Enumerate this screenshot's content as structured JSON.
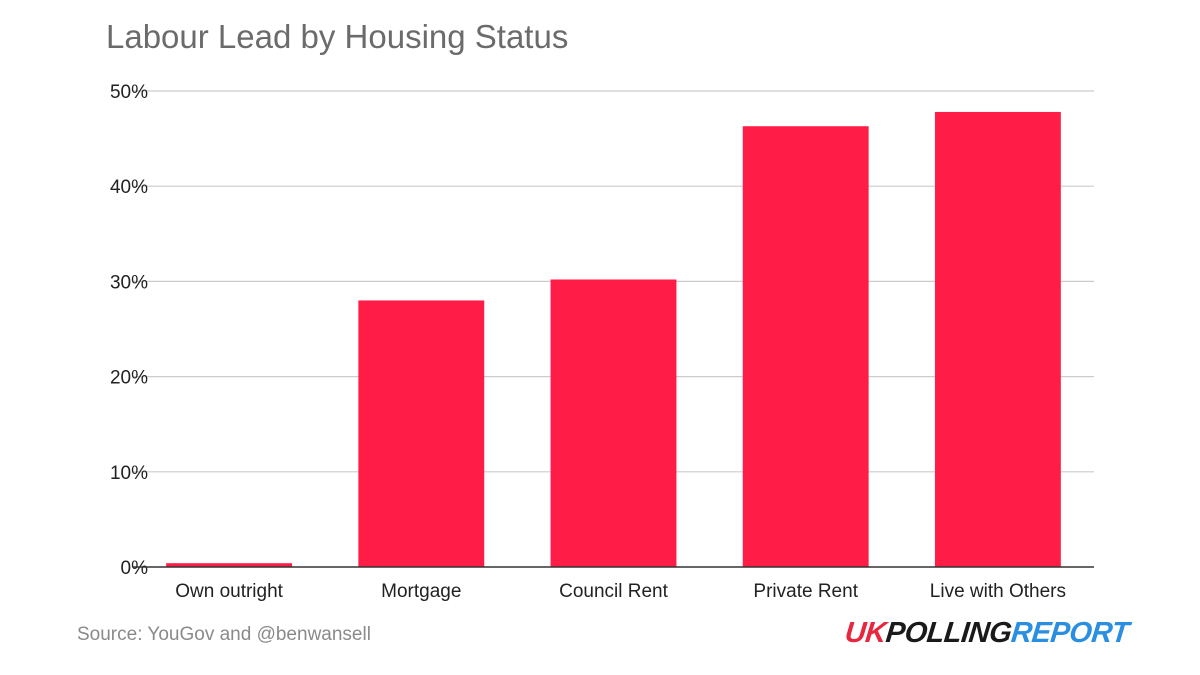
{
  "page": {
    "title": "Labour Lead by Housing Status",
    "source": "Source: YouGov and @benwansell",
    "logo": {
      "part1": "UK",
      "part2": "POLLING",
      "part3": "REPORT"
    },
    "colors": {
      "bar": "#ff1d48",
      "title": "#6b6b6b",
      "grid": "#cccccc",
      "axis": "#333333",
      "logo_uk": "#e8273f",
      "logo_polling": "#1a1a1a",
      "logo_report": "#2a8fe0"
    }
  },
  "chart_data": {
    "type": "bar",
    "title": "Labour Lead by Housing Status",
    "xlabel": "",
    "ylabel": "",
    "categories": [
      "Own outright",
      "Mortgage",
      "Council Rent",
      "Private Rent",
      "Live with Others"
    ],
    "values": [
      0.4,
      28.0,
      30.2,
      46.3,
      47.8
    ],
    "ylim": [
      0,
      50
    ],
    "yticks": [
      0,
      10,
      20,
      30,
      40,
      50
    ],
    "ytick_labels": [
      "0%",
      "10%",
      "20%",
      "30%",
      "40%",
      "50%"
    ],
    "grid": true,
    "legend": "none"
  }
}
